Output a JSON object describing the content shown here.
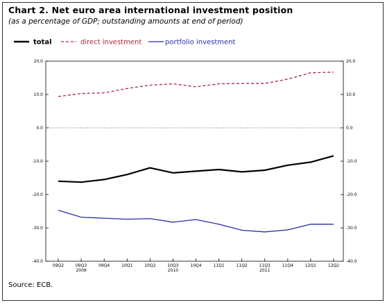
{
  "title": "Chart 2. Net euro area international investment position",
  "subtitle": "(as a percentage of GDP; outstanding amounts at end of period)",
  "source": "Source: ECB.",
  "colors": {
    "total": "#000000",
    "direct": "#b0203c",
    "portfolio": "#2a2aa8",
    "zero_line": "#555555"
  },
  "chart_data": {
    "type": "line",
    "categories": [
      "09Q2",
      "09Q3",
      "09Q4",
      "10Q1",
      "10Q2",
      "10Q3",
      "10Q4",
      "11Q1",
      "11Q2",
      "11Q3",
      "11Q4",
      "12Q1",
      "12Q2"
    ],
    "year_labels": [
      {
        "label": "2009",
        "category_index": 1
      },
      {
        "label": "2010",
        "category_index": 5
      },
      {
        "label": "2011",
        "category_index": 9
      }
    ],
    "series": [
      {
        "name": "total",
        "key": "total",
        "style": "solid-bold",
        "values": [
          -16.0,
          -16.3,
          -15.5,
          -14.0,
          -12.0,
          -13.5,
          -13.0,
          -12.5,
          -13.2,
          -12.7,
          -11.2,
          -10.3,
          -8.4
        ]
      },
      {
        "name": "direct investment",
        "key": "direct",
        "style": "dashed",
        "values": [
          9.4,
          10.3,
          10.5,
          11.8,
          12.8,
          13.2,
          12.3,
          13.2,
          13.3,
          13.3,
          14.6,
          16.5,
          16.7
        ]
      },
      {
        "name": "portfolio investment",
        "key": "portfolio",
        "style": "solid",
        "values": [
          -24.7,
          -26.8,
          -27.1,
          -27.4,
          -27.2,
          -28.3,
          -27.5,
          -28.9,
          -30.7,
          -31.2,
          -30.6,
          -28.9,
          -28.9
        ]
      }
    ],
    "ylim": [
      -40.0,
      20.0
    ],
    "yticks": [
      "20.0",
      "10.0",
      "0.0",
      "-10.0",
      "-20.0",
      "-30.0",
      "-40.0"
    ],
    "zero_line_style": "dotted",
    "legend_position": "top-left"
  }
}
